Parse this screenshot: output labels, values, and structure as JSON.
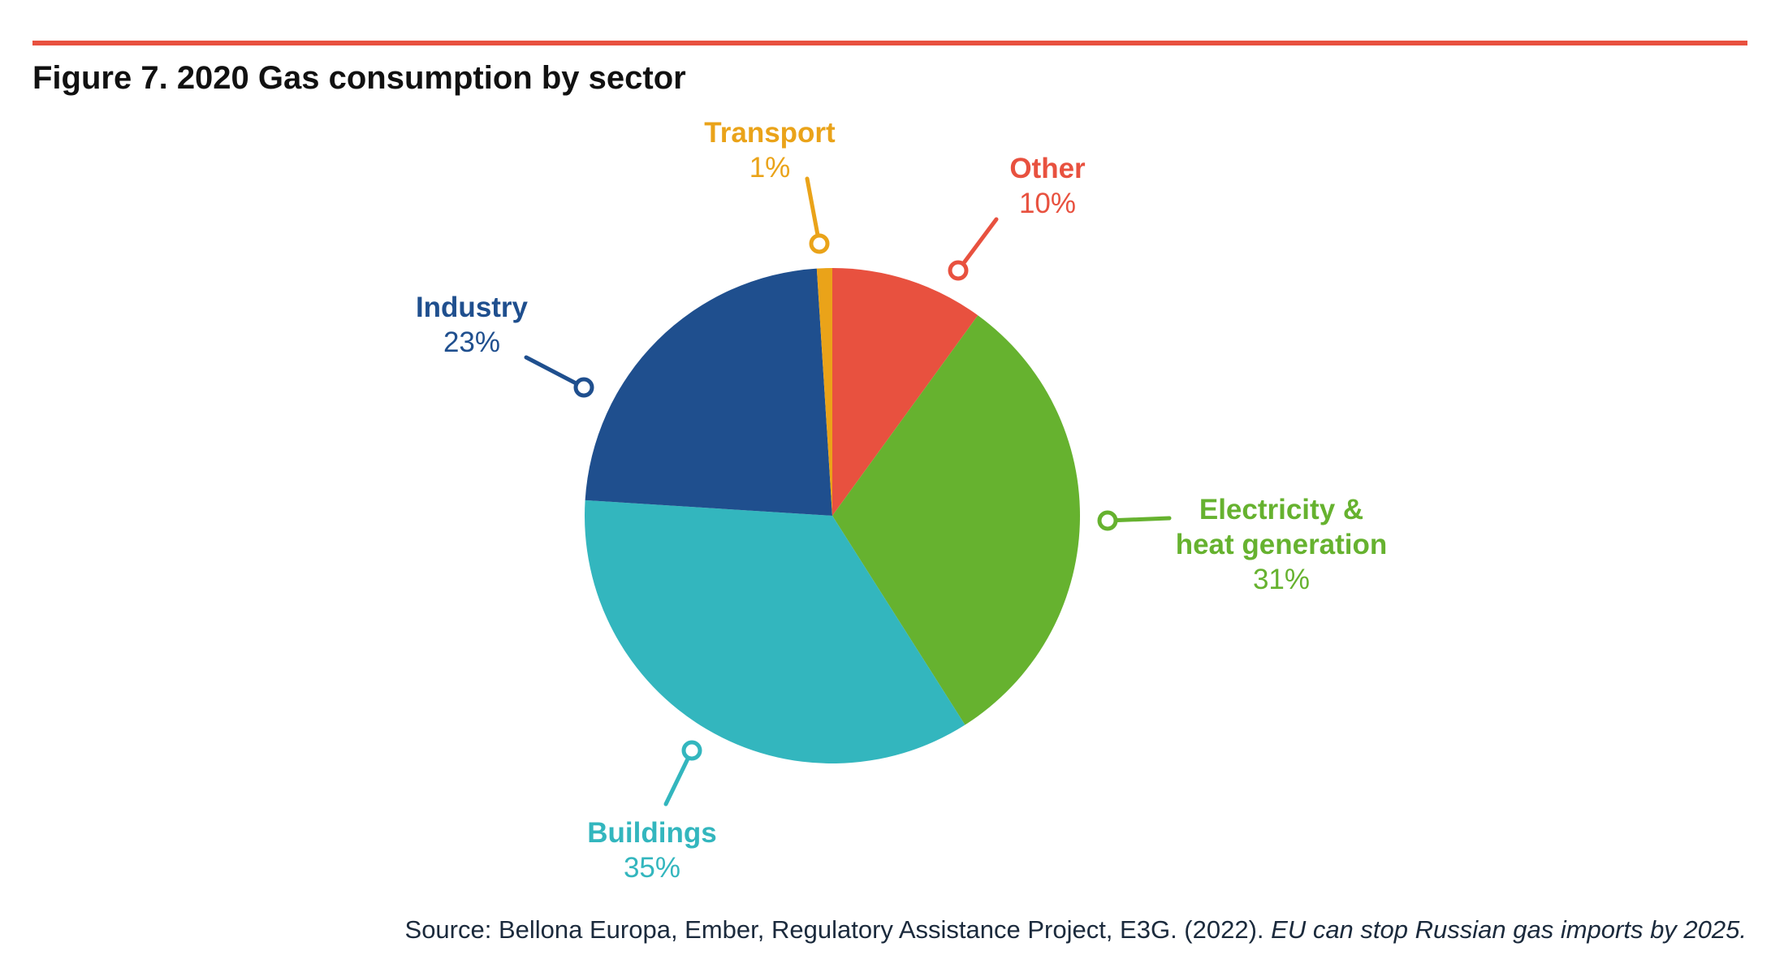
{
  "figure": {
    "title": "Figure 7. 2020 Gas consumption by sector",
    "source_prefix": "Source: Bellona Europa, Ember, Regulatory Assistance Project, E3G. (2022).",
    "source_citation": "EU can stop Russian gas imports by 2025."
  },
  "colors": {
    "rule": "#e8513f",
    "title": "#111111",
    "source": "#1b2a3c"
  },
  "chart_data": {
    "type": "pie",
    "title": "Figure 7. 2020 Gas consumption by sector",
    "start_angle_deg": 0,
    "direction": "clockwise",
    "slices": [
      {
        "label": "Other",
        "label_lines": [
          "Other"
        ],
        "value": 10,
        "value_label": "10%",
        "color": "#e8513f"
      },
      {
        "label": "Electricity & heat generation",
        "label_lines": [
          "Electricity &",
          "heat generation"
        ],
        "value": 31,
        "value_label": "31%",
        "color": "#66b22f"
      },
      {
        "label": "Buildings",
        "label_lines": [
          "Buildings"
        ],
        "value": 35,
        "value_label": "35%",
        "color": "#33b6be"
      },
      {
        "label": "Industry",
        "label_lines": [
          "Industry"
        ],
        "value": 23,
        "value_label": "23%",
        "color": "#1f4f8e"
      },
      {
        "label": "Transport",
        "label_lines": [
          "Transport"
        ],
        "value": 1,
        "value_label": "1%",
        "color": "#eaa319"
      }
    ]
  }
}
